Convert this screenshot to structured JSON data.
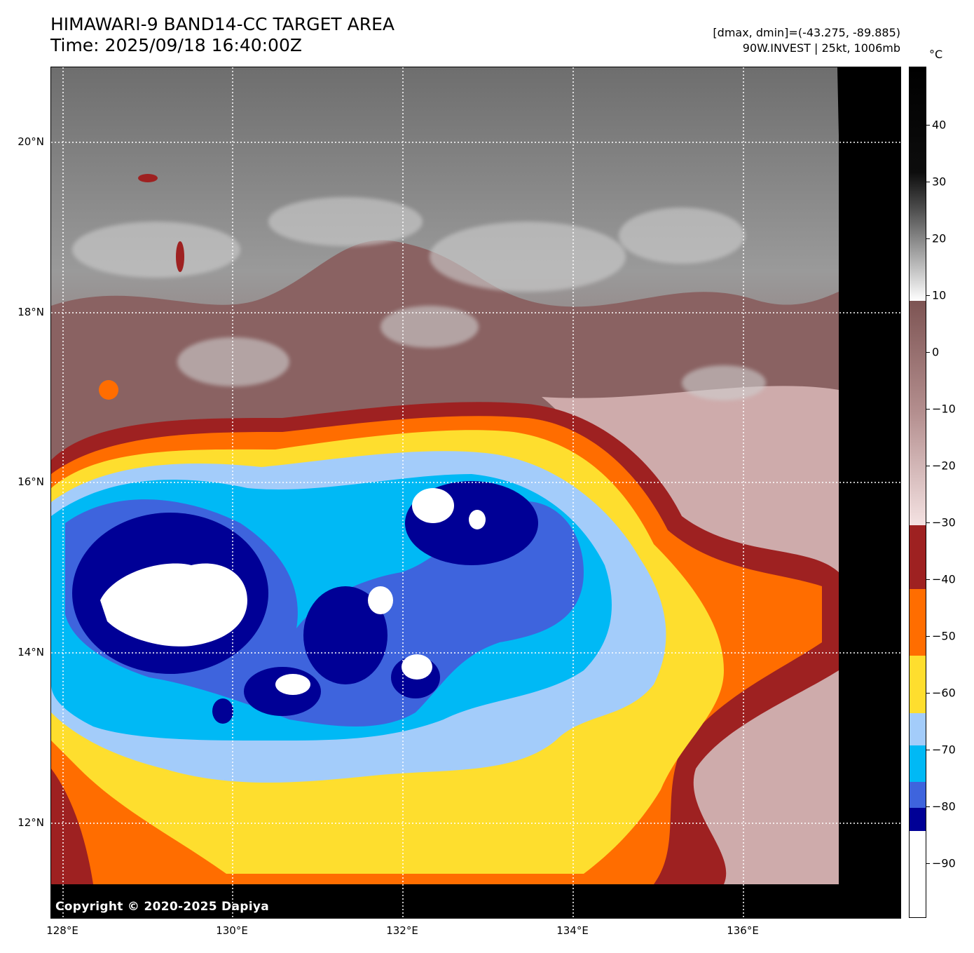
{
  "title": {
    "line1": "HIMAWARI-9 BAND14-CC TARGET AREA",
    "line2": "Time: 2025/09/18 16:40:00Z"
  },
  "meta": {
    "range": "[dmax, dmin]=(-43.275, -89.885)",
    "storm": "90W.INVEST | 25kt, 1006mb"
  },
  "copyright": "Copyright © 2020-2025 Dapiya",
  "axes": {
    "lat_labels": [
      "20°N",
      "18°N",
      "16°N",
      "14°N",
      "12°N"
    ],
    "lon_labels": [
      "128°E",
      "130°E",
      "132°E",
      "134°E",
      "136°E"
    ]
  },
  "colorbar": {
    "unit": "°C",
    "labels": [
      "40",
      "30",
      "20",
      "10",
      "0",
      "−10",
      "−20",
      "−30",
      "−40",
      "−50",
      "−60",
      "−70",
      "−80",
      "−90"
    ],
    "colors": {
      "warm_black": "#000000",
      "gray": "#8a8a8a",
      "white": "#ffffff",
      "brown": "#7d5453",
      "pink": "#efd6d6",
      "dark_red": "#9e2121",
      "orange": "#ff6d00",
      "yellow": "#fede2e",
      "light_blue": "#a3ccfa",
      "cyan": "#00b9f5",
      "royal_blue": "#3e64dd",
      "navy": "#000096"
    }
  },
  "chart_data": {
    "type": "heatmap",
    "title": "HIMAWARI-9 BAND14-CC TARGET AREA",
    "xlabel": "",
    "ylabel": "",
    "x_ticks": [
      "128°E",
      "130°E",
      "132°E",
      "134°E",
      "136°E"
    ],
    "y_ticks": [
      "20°N",
      "18°N",
      "16°N",
      "14°N",
      "12°N"
    ],
    "colorbar_range": [
      -100,
      50
    ],
    "dmax": -43.275,
    "dmin": -89.885
  }
}
